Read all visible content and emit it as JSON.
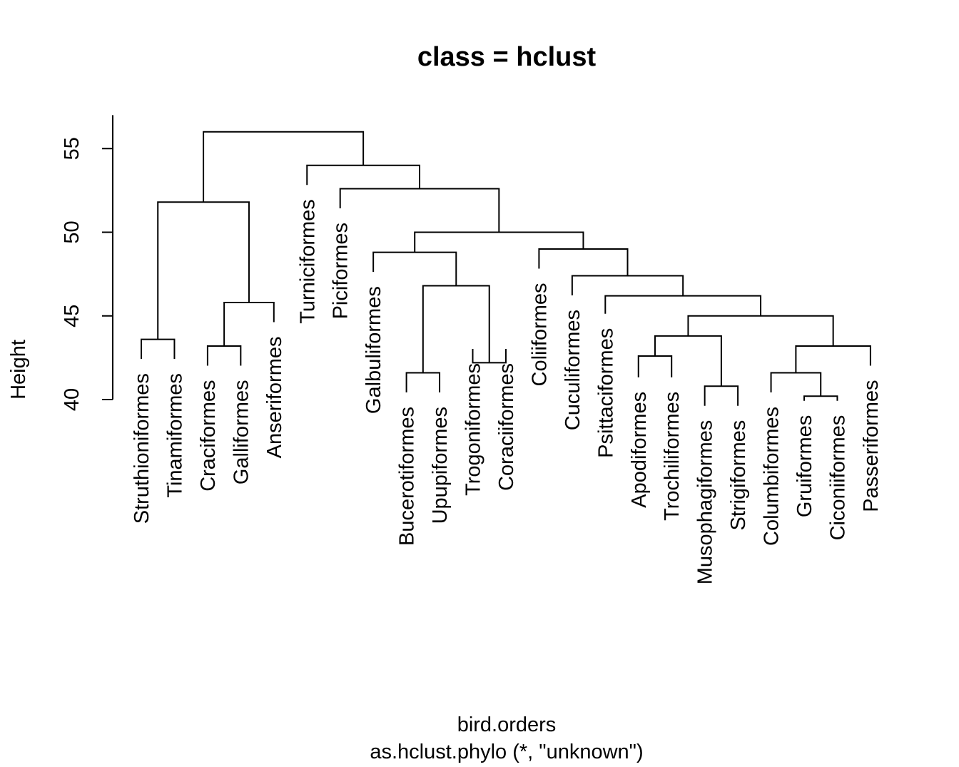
{
  "chart_data": {
    "type": "dendrogram",
    "title": "class = hclust",
    "ylabel": "Height",
    "xlabel": "bird.orders",
    "subtitle": "as.hclust.phylo (*, \"unknown\")",
    "ylim": [
      40,
      57
    ],
    "yticks": [
      40,
      45,
      50,
      55
    ],
    "leaves": [
      {
        "name": "Struthioniformes",
        "height": 42.0
      },
      {
        "name": "Tinamiformes",
        "height": 42.0
      },
      {
        "name": "Craciformes",
        "height": 41.6
      },
      {
        "name": "Galliformes",
        "height": 41.6
      },
      {
        "name": "Anseriformes",
        "height": 44.2
      },
      {
        "name": "Turniciformes",
        "height": 52.4
      },
      {
        "name": "Piciformes",
        "height": 51.0
      },
      {
        "name": "Galbuliformes",
        "height": 47.2
      },
      {
        "name": "Bucerotiformes",
        "height": 40.0
      },
      {
        "name": "Upupiformes",
        "height": 40.0
      },
      {
        "name": "Trogoniformes",
        "height": 42.6
      },
      {
        "name": "Coraciiformes",
        "height": 42.6
      },
      {
        "name": "Coliiformes",
        "height": 47.4
      },
      {
        "name": "Cuculiformes",
        "height": 45.8
      },
      {
        "name": "Psittaciformes",
        "height": 44.7
      },
      {
        "name": "Apodiformes",
        "height": 40.9
      },
      {
        "name": "Trochiliformes",
        "height": 40.9
      },
      {
        "name": "Musophagiformes",
        "height": 39.2
      },
      {
        "name": "Strigiformes",
        "height": 39.2
      },
      {
        "name": "Columbiformes",
        "height": 40.0
      },
      {
        "name": "Gruiformes",
        "height": 39.5
      },
      {
        "name": "Ciconiiformes",
        "height": 39.5
      },
      {
        "name": "Passeriformes",
        "height": 41.6
      }
    ],
    "merges": [
      {
        "left": "L0",
        "right": "L1",
        "height": 43.6
      },
      {
        "left": "L2",
        "right": "L3",
        "height": 43.2
      },
      {
        "left": "N1",
        "right": "L4",
        "height": 45.8
      },
      {
        "left": "N0",
        "right": "N2",
        "height": 51.8
      },
      {
        "left": "L8",
        "right": "L9",
        "height": 41.6
      },
      {
        "left": "L10",
        "right": "L11",
        "height": 42.2
      },
      {
        "left": "N4",
        "right": "N5",
        "height": 46.8
      },
      {
        "left": "L7",
        "right": "N6",
        "height": 48.8
      },
      {
        "left": "L15",
        "right": "L16",
        "height": 42.6
      },
      {
        "left": "L17",
        "right": "L18",
        "height": 40.8
      },
      {
        "left": "N8",
        "right": "N9",
        "height": 43.8
      },
      {
        "left": "L20",
        "right": "L21",
        "height": 40.2
      },
      {
        "left": "L19",
        "right": "N11",
        "height": 41.6
      },
      {
        "left": "N12",
        "right": "L22",
        "height": 43.2
      },
      {
        "left": "N10",
        "right": "N13",
        "height": 45.0
      },
      {
        "left": "L14",
        "right": "N14",
        "height": 46.2
      },
      {
        "left": "L13",
        "right": "N15",
        "height": 47.4
      },
      {
        "left": "L12",
        "right": "N16",
        "height": 49.0
      },
      {
        "left": "N7",
        "right": "N17",
        "height": 50.0
      },
      {
        "left": "L6",
        "right": "N18",
        "height": 52.6
      },
      {
        "left": "L5",
        "right": "N19",
        "height": 54.0
      },
      {
        "left": "N3",
        "right": "N20",
        "height": 56.0
      }
    ]
  }
}
